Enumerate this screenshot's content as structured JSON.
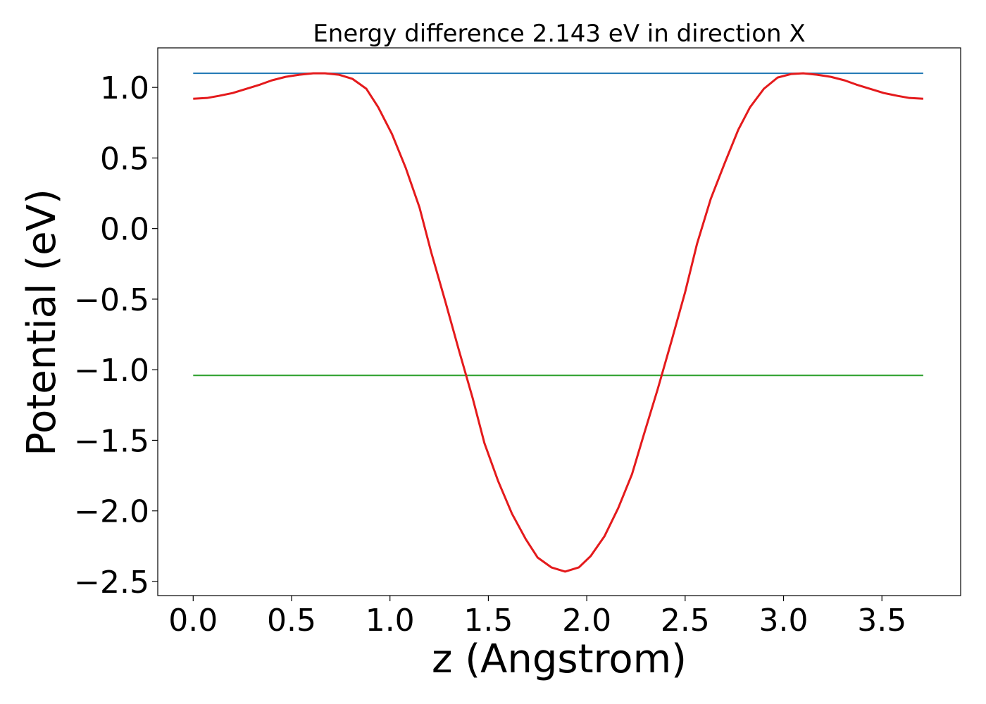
{
  "chart_data": {
    "type": "line",
    "title": "Energy difference 2.143 eV in direction X",
    "xlabel": "z (Angstrom)",
    "ylabel": "Potential (eV)",
    "xlim": [
      -0.18,
      3.9
    ],
    "ylim": [
      -2.6,
      1.28
    ],
    "x_ticks": [
      0.0,
      0.5,
      1.0,
      1.5,
      2.0,
      2.5,
      3.0,
      3.5
    ],
    "x_tick_labels": [
      "0.0",
      "0.5",
      "1.0",
      "1.5",
      "2.0",
      "2.5",
      "3.0",
      "3.5"
    ],
    "y_ticks": [
      1.0,
      0.5,
      0.0,
      -0.5,
      -1.0,
      -1.5,
      -2.0,
      -2.5
    ],
    "y_tick_labels": [
      "1.0",
      "0.5",
      "0.0",
      "−0.5",
      "−1.0",
      "−1.5",
      "−2.0",
      "−2.5"
    ],
    "grid": false,
    "series": [
      {
        "color": "#1f77b4",
        "x": [
          0.0,
          3.71
        ],
        "y": [
          1.1,
          1.1
        ]
      },
      {
        "color": "#2ca02c",
        "x": [
          0.0,
          3.71
        ],
        "y": [
          -1.04,
          -1.04
        ]
      },
      {
        "color": "#e41a1c",
        "x": [
          0.0,
          0.07,
          0.13,
          0.2,
          0.27,
          0.34,
          0.4,
          0.47,
          0.54,
          0.61,
          0.67,
          0.74,
          0.81,
          0.88,
          0.94,
          1.01,
          1.08,
          1.15,
          1.21,
          1.28,
          1.35,
          1.42,
          1.48,
          1.55,
          1.62,
          1.69,
          1.75,
          1.82,
          1.89,
          1.96,
          2.02,
          2.09,
          2.16,
          2.23,
          2.29,
          2.36,
          2.43,
          2.5,
          2.56,
          2.63,
          2.7,
          2.77,
          2.83,
          2.9,
          2.97,
          3.04,
          3.1,
          3.17,
          3.24,
          3.31,
          3.37,
          3.44,
          3.51,
          3.58,
          3.64,
          3.71
        ],
        "y": [
          0.92,
          0.925,
          0.94,
          0.96,
          0.99,
          1.02,
          1.05,
          1.075,
          1.09,
          1.1,
          1.1,
          1.09,
          1.06,
          0.99,
          0.86,
          0.67,
          0.43,
          0.15,
          -0.17,
          -0.51,
          -0.86,
          -1.2,
          -1.52,
          -1.79,
          -2.02,
          -2.2,
          -2.33,
          -2.4,
          -2.43,
          -2.4,
          -2.32,
          -2.18,
          -1.98,
          -1.74,
          -1.46,
          -1.14,
          -0.8,
          -0.45,
          -0.11,
          0.21,
          0.46,
          0.7,
          0.86,
          0.99,
          1.07,
          1.095,
          1.1,
          1.09,
          1.075,
          1.05,
          1.02,
          0.99,
          0.96,
          0.94,
          0.925,
          0.92
        ]
      }
    ]
  }
}
